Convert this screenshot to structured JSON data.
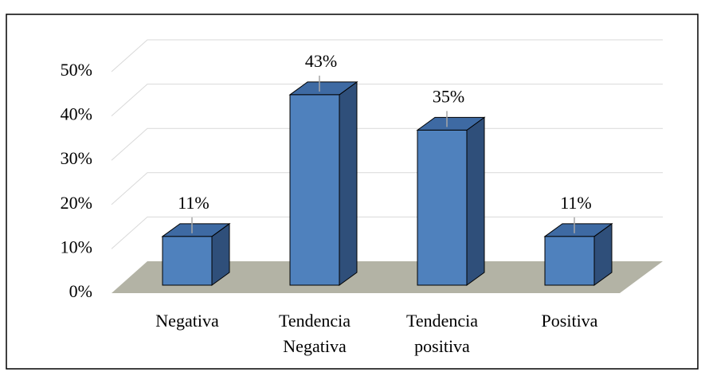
{
  "chart_data": {
    "type": "bar3d",
    "categories": [
      "Negativa",
      "Tendencia Negativa",
      "Tendencia positiva",
      "Positiva"
    ],
    "values": [
      11,
      43,
      35,
      11
    ],
    "value_labels": [
      "11%",
      "43%",
      "35%",
      "11%"
    ],
    "color": "#4f81bd",
    "ylim": [
      0,
      50
    ],
    "yticks": [
      {
        "value": 0,
        "label": "0%"
      },
      {
        "value": 10,
        "label": "10%"
      },
      {
        "value": 20,
        "label": "20%"
      },
      {
        "value": 30,
        "label": "30%"
      },
      {
        "value": 40,
        "label": "40%"
      },
      {
        "value": 50,
        "label": "50%"
      }
    ],
    "grid": true
  }
}
